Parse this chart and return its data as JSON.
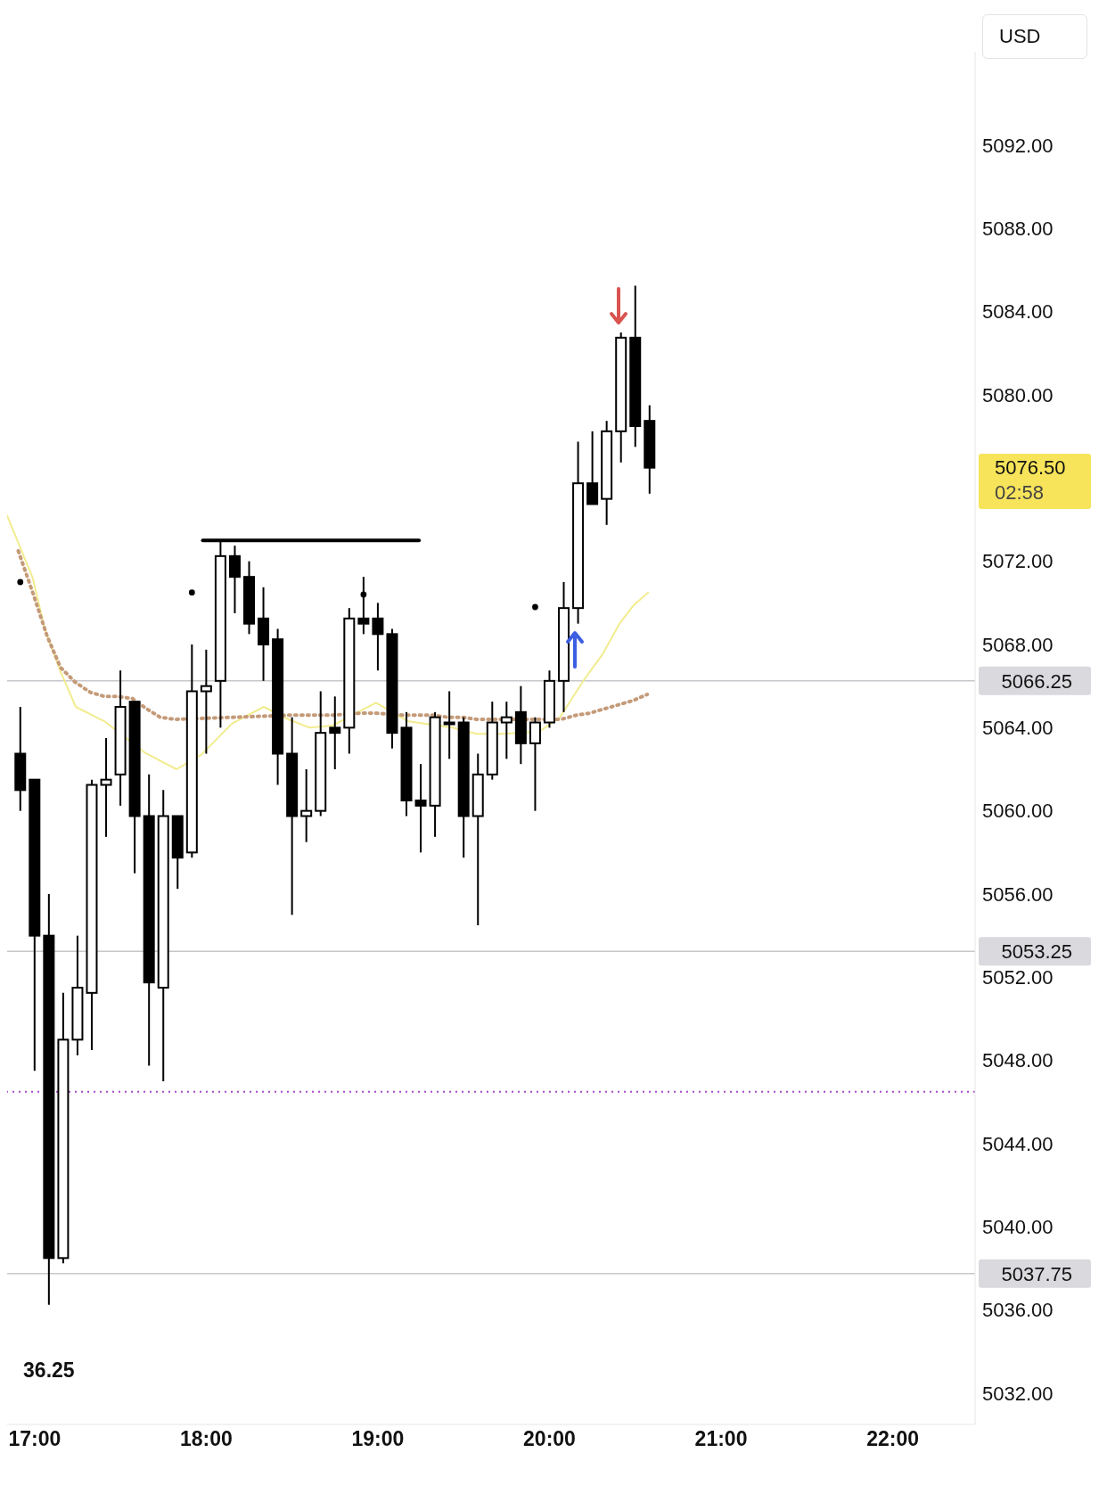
{
  "chart_data": {
    "type": "candlestick",
    "ylabel": "USD",
    "x": [
      16.9167,
      17,
      17.0833,
      17.1667,
      17.25,
      17.3333,
      17.4167,
      17.5,
      17.5833,
      17.6667,
      17.75,
      17.8333,
      17.9167,
      18,
      18.0833,
      18.1667,
      18.25,
      18.3333,
      18.4167,
      18.5,
      18.5833,
      18.6667,
      18.75,
      18.8333,
      18.9167,
      19,
      19.0833,
      19.1667,
      19.25,
      19.3333,
      19.4167,
      19.5,
      19.5833,
      19.6667,
      19.75,
      19.8333,
      19.9167,
      20,
      20.0833,
      20.1667,
      20.25,
      20.3333,
      20.4167,
      20.5,
      20.5833
    ],
    "ohlc": [
      [
        5062.75,
        5065,
        5060,
        5061
      ],
      [
        5061.5,
        5061.5,
        5047.5,
        5054
      ],
      [
        5054,
        5056,
        5036.25,
        5038.5
      ],
      [
        5038.5,
        5051.25,
        5038.25,
        5049
      ],
      [
        5049,
        5054,
        5048.25,
        5051.5
      ],
      [
        5051.25,
        5061.5,
        5048.5,
        5061.25
      ],
      [
        5061.25,
        5063.5,
        5058.75,
        5061.5
      ],
      [
        5061.75,
        5066.75,
        5060.25,
        5065
      ],
      [
        5065.25,
        5065.25,
        5057,
        5059.75
      ],
      [
        5059.75,
        5061.75,
        5047.75,
        5051.75
      ],
      [
        5051.5,
        5061,
        5047,
        5059.75
      ],
      [
        5059.75,
        5059.75,
        5056.25,
        5057.75
      ],
      [
        5058,
        5068,
        5057.75,
        5065.75
      ],
      [
        5065.75,
        5067.75,
        5062.75,
        5066
      ],
      [
        5066.25,
        5073,
        5064,
        5072.25
      ],
      [
        5072.25,
        5072.75,
        5069.5,
        5071.25
      ],
      [
        5071.25,
        5072,
        5068.5,
        5069
      ],
      [
        5069.25,
        5070.75,
        5066.25,
        5068
      ],
      [
        5068.25,
        5068.75,
        5061.25,
        5062.75
      ],
      [
        5062.75,
        5064.5,
        5055,
        5059.75
      ],
      [
        5059.75,
        5062,
        5058.5,
        5060
      ],
      [
        5060,
        5065.75,
        5059.75,
        5063.75
      ],
      [
        5064,
        5065.5,
        5062,
        5063.75
      ],
      [
        5064,
        5069.75,
        5062.75,
        5069.25
      ],
      [
        5069.25,
        5071.25,
        5068.5,
        5069
      ],
      [
        5069.25,
        5070,
        5066.75,
        5068.5
      ],
      [
        5068.5,
        5068.75,
        5063,
        5063.75
      ],
      [
        5064,
        5064.75,
        5059.75,
        5060.5
      ],
      [
        5060.5,
        5062.25,
        5058,
        5060.25
      ],
      [
        5060.25,
        5064.75,
        5058.75,
        5064.5
      ],
      [
        5064.25,
        5065.75,
        5062.5,
        5064.25
      ],
      [
        5064.25,
        5064.5,
        5057.75,
        5059.75
      ],
      [
        5059.75,
        5062.75,
        5054.5,
        5061.75
      ],
      [
        5061.75,
        5065.25,
        5061.5,
        5064.25
      ],
      [
        5064.25,
        5065.25,
        5062.5,
        5064.5
      ],
      [
        5064.75,
        5066,
        5062.25,
        5063.25
      ],
      [
        5063.25,
        5064.5,
        5060,
        5064.25
      ],
      [
        5064.25,
        5066.75,
        5064,
        5066.25
      ],
      [
        5066.25,
        5071,
        5064.75,
        5069.75
      ],
      [
        5069.75,
        5077.75,
        5069,
        5075.75
      ],
      [
        5075.75,
        5078.25,
        5074.75,
        5074.75
      ],
      [
        5075,
        5078.75,
        5073.75,
        5078.25
      ],
      [
        5078.25,
        5083,
        5076.75,
        5082.75
      ],
      [
        5082.75,
        5085.25,
        5077.5,
        5078.5
      ],
      [
        5078.75,
        5079.5,
        5075.25,
        5076.5
      ]
    ],
    "colors": [
      "#000000",
      "#000000",
      "#000000",
      "#ffffff",
      "#ffffff",
      "#ffffff",
      "#ffffff",
      "#ffffff",
      "#000000",
      "#000000",
      "#ffffff",
      "#000000",
      "#ffffff",
      "#ffffff",
      "#ffffff",
      "#000000",
      "#000000",
      "#000000",
      "#000000",
      "#000000",
      "#ffffff",
      "#ffffff",
      "#000000",
      "#ffffff",
      "#000000",
      "#000000",
      "#000000",
      "#000000",
      "#000000",
      "#ffffff",
      "#ffffff",
      "#000000",
      "#ffffff",
      "#ffffff",
      "#ffffff",
      "#000000",
      "#ffffff",
      "#ffffff",
      "#ffffff",
      "#ffffff",
      "#000000",
      "#ffffff",
      "#ffffff",
      "#000000",
      "#000000"
    ],
    "series": [
      {
        "type": "line",
        "color": "#f2ec8f",
        "line_style": "solid",
        "x": [
          16.84,
          16.989,
          17.061,
          17.151,
          17.24,
          17.408,
          17.48,
          17.57,
          17.642,
          17.827,
          17.972,
          18.151,
          18.335,
          18.48,
          18.603,
          18.737,
          18.849,
          18.989,
          19.089,
          19.179,
          19.318,
          19.436,
          19.575,
          19.715,
          19.838,
          19.939,
          20.061,
          20.201,
          20.307,
          20.408,
          20.492,
          20.575
        ],
        "values": [
          5074.2,
          5071.2,
          5068.7,
          5066.7,
          5065,
          5064.3,
          null,
          null,
          5062.8,
          5062,
          5062.7,
          5064.2,
          5065,
          5064.4,
          5064,
          5064.1,
          null,
          5065.2,
          null,
          5064.3,
          null,
          5064,
          5063.7,
          5063.7,
          null,
          5063.8,
          5064.5,
          5066.3,
          5067.5,
          5069,
          5069.9,
          5070.5
        ]
      },
      {
        "type": "line",
        "color": "#c49a78",
        "line_style": "dotted",
        "x": [
          16.905,
          16.989,
          17.073,
          17.151,
          17.235,
          17.324,
          17.408,
          17.486,
          17.57,
          17.654,
          17.732,
          17.816,
          18.486,
          18.57,
          18.654,
          18.737,
          18.902,
          18.983,
          19.156,
          19.24,
          19.324,
          19.408,
          19.492,
          19.575,
          19.654,
          19.737,
          19.905,
          20.067,
          20.156,
          20.235,
          20.318,
          20.402,
          20.486,
          20.57
        ],
        "values": [
          5072.5,
          5070.5,
          5068.4,
          5066.9,
          5066.2,
          5065.7,
          5065.5,
          5065.5,
          5065.4,
          5064.9,
          5064.5,
          5064.4,
          5064.6,
          5064.6,
          5064.6,
          5064.6,
          5064.7,
          5064.7,
          5064.6,
          5064.6,
          5064.6,
          5064.5,
          5064.5,
          5064.4,
          5064.4,
          5064.4,
          5064.4,
          5064.4,
          5064.6,
          5064.7,
          5064.9,
          5065.1,
          5065.3,
          5065.6
        ]
      },
      {
        "type": "scatter",
        "color": "#000000",
        "x": [
          16.9167,
          17.9167,
          18.9167,
          19.9167
        ],
        "values": [
          5071,
          5070.5,
          5070.4,
          5069.8
        ]
      },
      {
        "type": "line",
        "color": "#000000",
        "line_style": "solid",
        "x": [
          17.98,
          19.24
        ],
        "values": [
          5073,
          5073
        ]
      }
    ],
    "ref_lines": [
      {
        "axis": "y",
        "value": 5066.25,
        "label": "5066.25",
        "color": "#c8c8cc",
        "line_style": "solid"
      },
      {
        "axis": "y",
        "value": 5053.25,
        "label": "5053.25",
        "color": "#c8c8cc",
        "line_style": "solid"
      },
      {
        "axis": "y",
        "value": 5037.75,
        "label": "5037.75",
        "color": "#c8c8cc",
        "line_style": "solid"
      },
      {
        "axis": "y",
        "value": 5046.5,
        "color": "#a64ac9",
        "line_style": "dotted"
      }
    ],
    "annotations": [
      "5076.50",
      "02:58",
      {
        "text": "36.25",
        "x": 17.0833,
        "y": 5036.25
      }
    ],
    "xlim": [
      16.84,
      22.48
    ],
    "xticks": [
      {
        "value": 17,
        "label": "17:00"
      },
      {
        "value": 18,
        "label": "18:00"
      },
      {
        "value": 19,
        "label": "19:00"
      },
      {
        "value": 20,
        "label": "20:00"
      },
      {
        "value": 21,
        "label": "21:00"
      },
      {
        "value": 22,
        "label": "22:00"
      }
    ],
    "ylim": [
      5030.5,
      5096.5
    ],
    "yticks": [
      {
        "value": 5032,
        "label": "5032.00"
      },
      {
        "value": 5036,
        "label": "5036.00"
      },
      {
        "value": 5040,
        "label": "5040.00"
      },
      {
        "value": 5044,
        "label": "5044.00"
      },
      {
        "value": 5048,
        "label": "5048.00"
      },
      {
        "value": 5052,
        "label": "5052.00"
      },
      {
        "value": 5056,
        "label": "5056.00"
      },
      {
        "value": 5060,
        "label": "5060.00"
      },
      {
        "value": 5064,
        "label": "5064.00"
      },
      {
        "value": 5068,
        "label": "5068.00"
      },
      {
        "value": 5072,
        "label": "5072.00"
      },
      {
        "value": 5080,
        "label": "5080.00"
      },
      {
        "value": 5084,
        "label": "5084.00"
      },
      {
        "value": 5088,
        "label": "5088.00"
      },
      {
        "value": 5092,
        "label": "5092.00"
      }
    ],
    "marker": "none"
  }
}
